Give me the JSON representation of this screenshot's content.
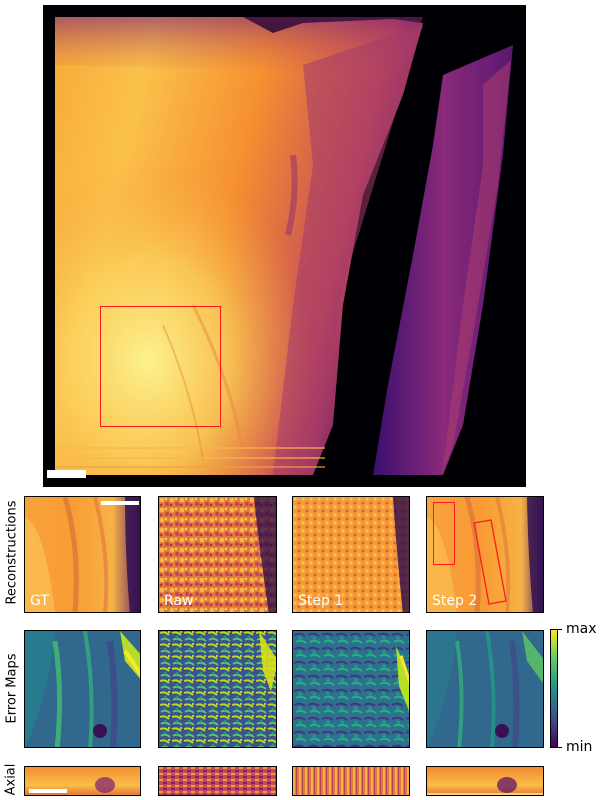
{
  "figure": {
    "row_labels": {
      "reconstructions": "Reconstructions",
      "error_maps": "Error Maps",
      "axial": "Axial"
    },
    "columns": [
      "GT",
      "Raw",
      "Step 1",
      "Step 2"
    ],
    "colorbar": {
      "max_label": "max",
      "min_label": "min",
      "reconstruction_colormap": "inferno",
      "error_colormap": "viridis"
    },
    "roi_color": "#ff1a1a",
    "scalebar_color": "#ffffff"
  }
}
